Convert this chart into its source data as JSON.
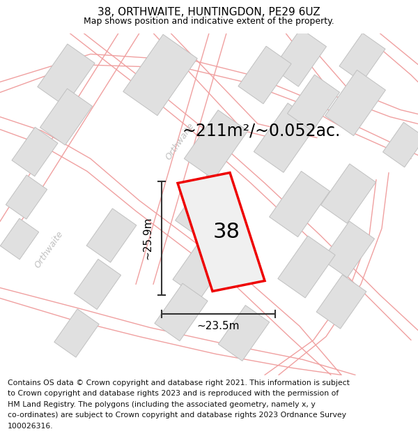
{
  "title": "38, ORTHWAITE, HUNTINGDON, PE29 6UZ",
  "subtitle": "Map shows position and indicative extent of the property.",
  "area_text": "~211m²/~0.052ac.",
  "property_number": "38",
  "dim_width": "~23.5m",
  "dim_height": "~25.9m",
  "footer_lines": [
    "Contains OS data © Crown copyright and database right 2021. This information is subject",
    "to Crown copyright and database rights 2023 and is reproduced with the permission of",
    "HM Land Registry. The polygons (including the associated geometry, namely x, y",
    "co-ordinates) are subject to Crown copyright and database rights 2023 Ordnance Survey",
    "100026316."
  ],
  "bg_color": "#f7f7f7",
  "plot_color": "#ee0000",
  "plot_fill": "#efefef",
  "road_color": "#f0a0a0",
  "building_color": "#e0e0e0",
  "building_edge": "#c0c0c0",
  "title_fontsize": 11,
  "subtitle_fontsize": 9,
  "area_fontsize": 17,
  "number_fontsize": 22,
  "dim_fontsize": 11,
  "footer_fontsize": 7.8,
  "road_text_color": "#c0c0c0",
  "road_text_size": 9
}
